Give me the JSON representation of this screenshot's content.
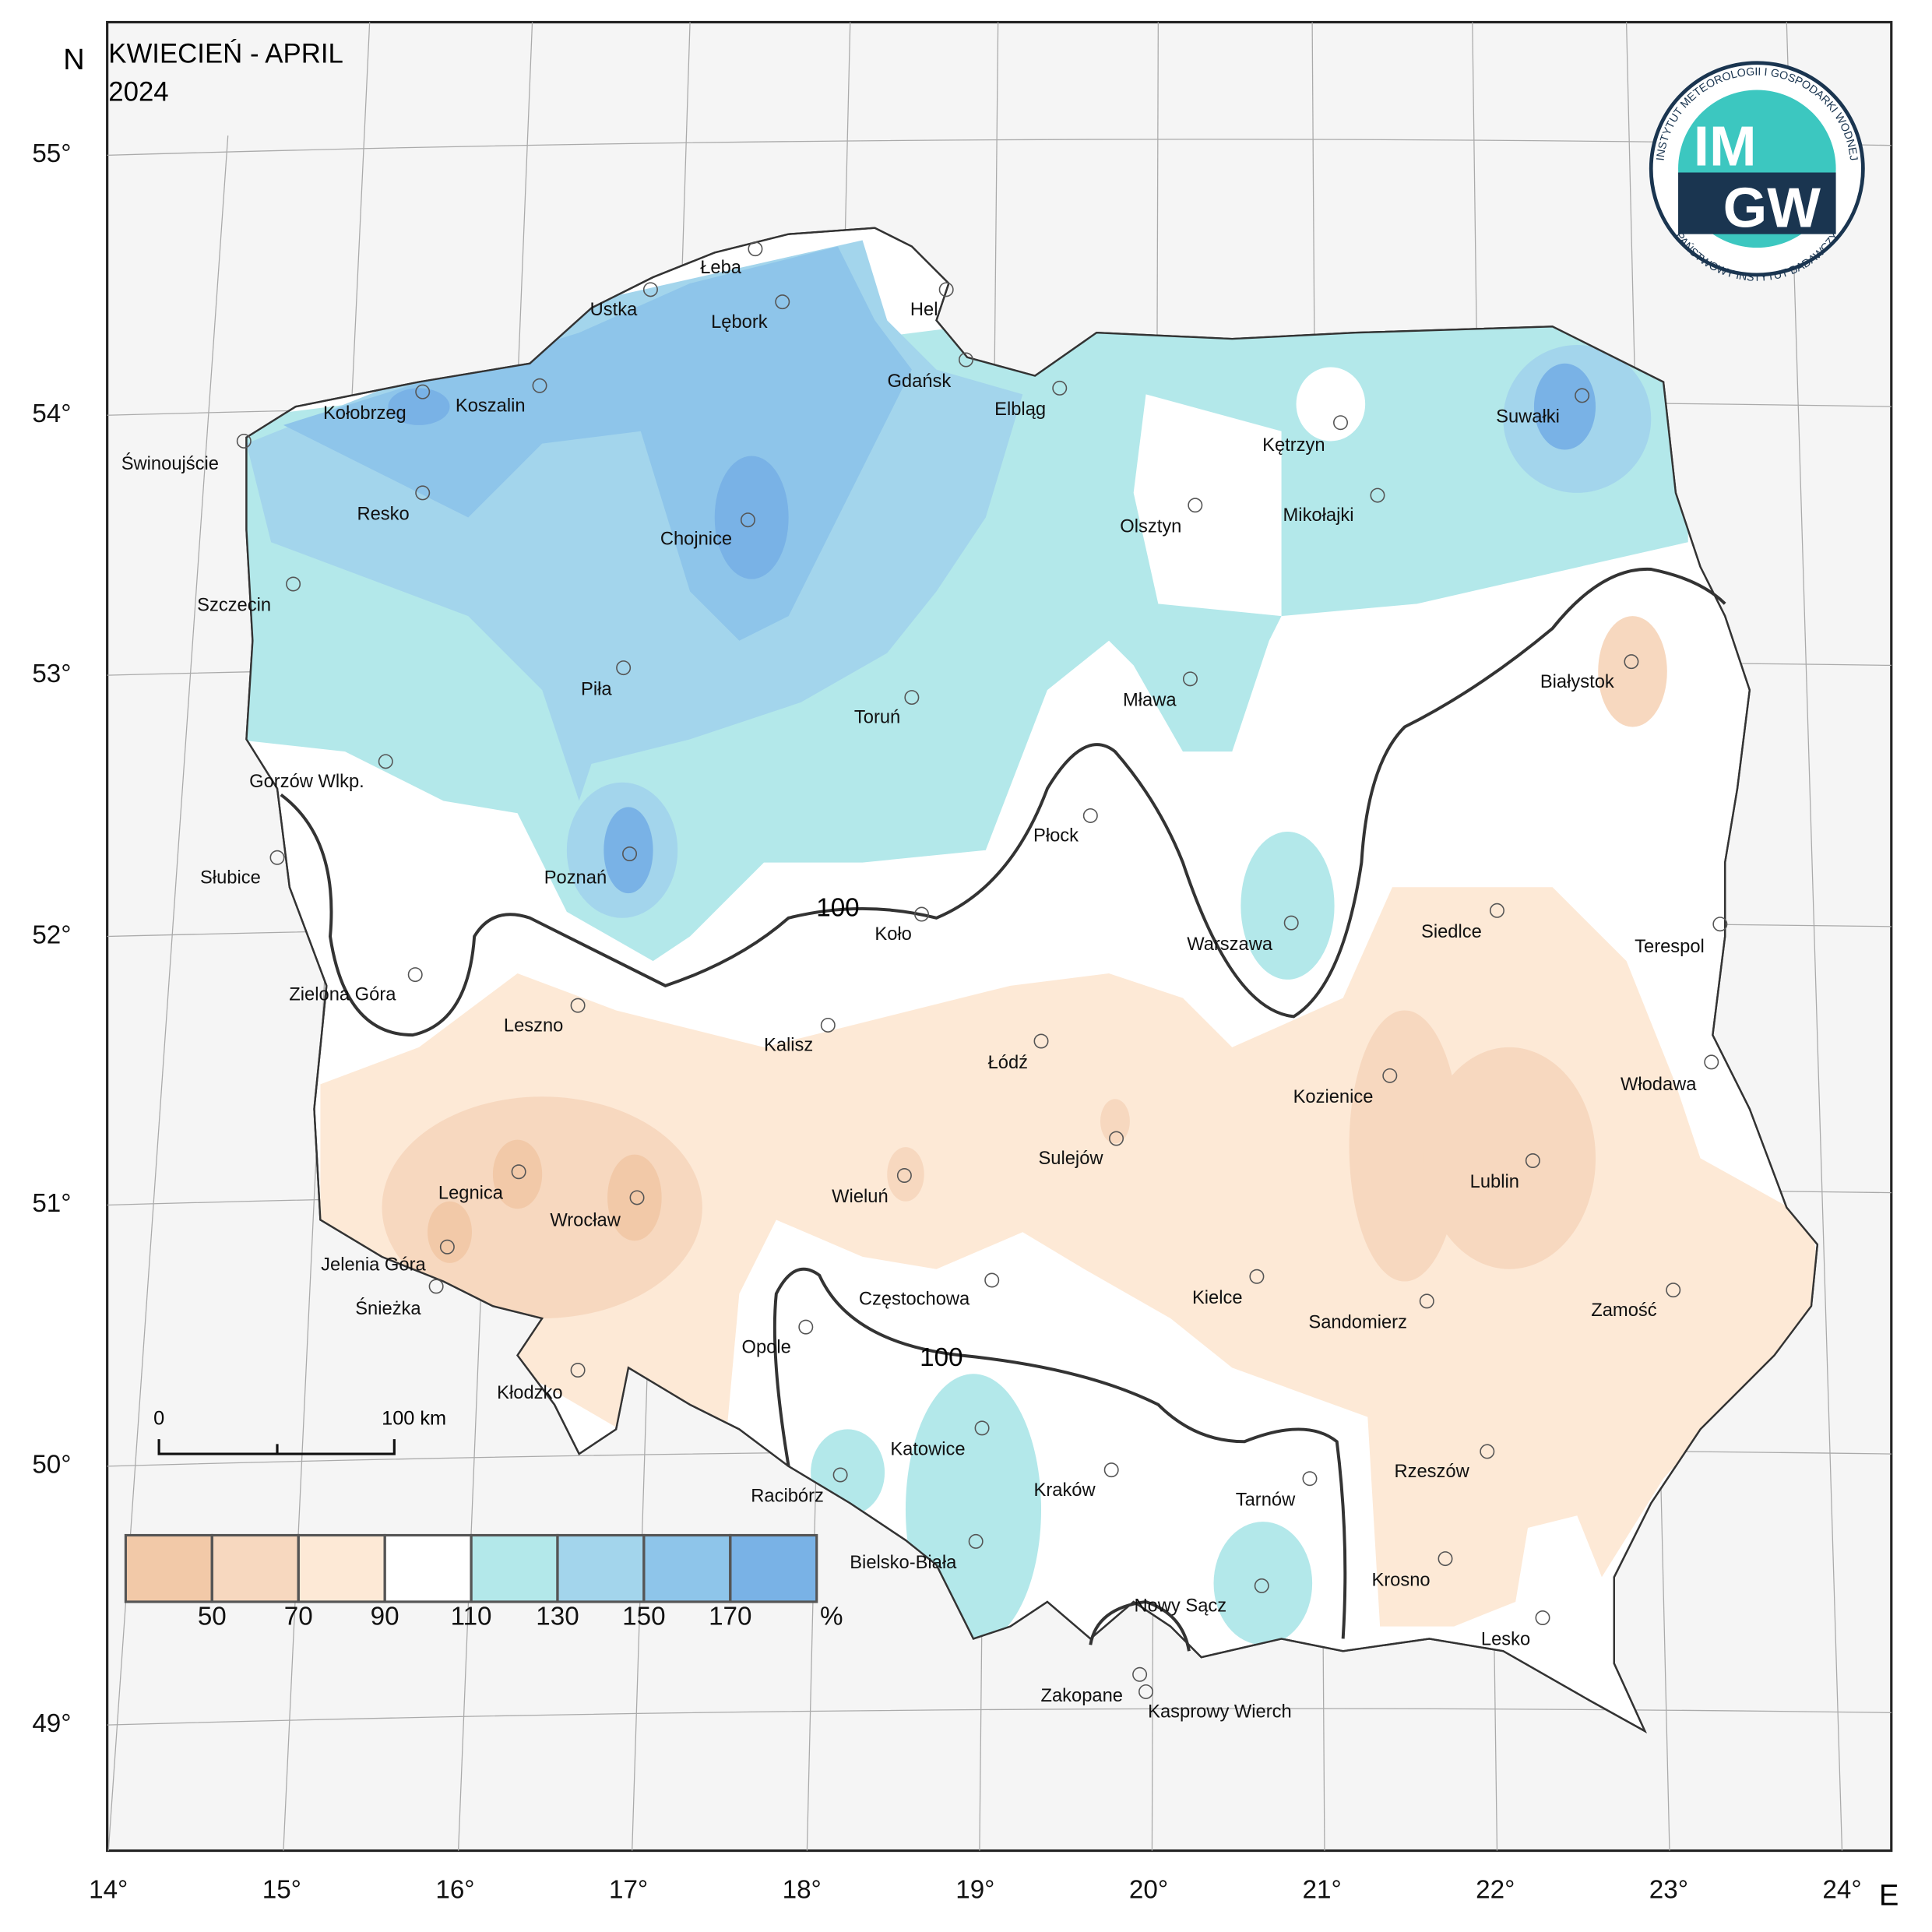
{
  "title": "KWIECIEŃ - APRIL",
  "year": "2024",
  "north": "N",
  "east": "E",
  "latitude_labels": [
    "55°",
    "54°",
    "53°",
    "52°",
    "51°",
    "50°",
    "49°"
  ],
  "longitude_labels": [
    "14°",
    "15°",
    "16°",
    "17°",
    "18°",
    "19°",
    "20°",
    "21°",
    "22°",
    "23°",
    "24°"
  ],
  "cities": [
    "Łeba",
    "Ustka",
    "Lębork",
    "Hel",
    "Gdańsk",
    "Elbląg",
    "Kołobrzeg",
    "Koszalin",
    "Świnoujście",
    "Resko",
    "Chojnice",
    "Olsztyn",
    "Kętrzyn",
    "Mikołajki",
    "Suwałki",
    "Szczecin",
    "Piła",
    "Toruń",
    "Mława",
    "Białystok",
    "Gorzów Wlkp.",
    "Płock",
    "Słubice",
    "Poznań",
    "Koło",
    "Warszawa",
    "Siedlce",
    "Terespol",
    "Zielona Góra",
    "Leszno",
    "Kalisz",
    "Łódź",
    "Kozienice",
    "Włodawa",
    "Sulejów",
    "Legnica",
    "Wrocław",
    "Wieluń",
    "Lublin",
    "Jelenia Góra",
    "Śnieżka",
    "Częstochowa",
    "Kielce",
    "Sandomierz",
    "Zamość",
    "Opole",
    "Kłodzko",
    "Katowice",
    "Rzeszów",
    "Racibórz",
    "Kraków",
    "Tarnów",
    "Bielsko-Biała",
    "Krosno",
    "Nowy Sącz",
    "Lesko",
    "Zakopane",
    "Kasprowy Wierch"
  ],
  "isoline_labels": [
    "100",
    "100"
  ],
  "scale_bar": {
    "start": "0",
    "end": "100 km"
  },
  "legend": {
    "breaks": [
      50,
      70,
      90,
      110,
      130,
      150,
      170
    ],
    "unit": "%",
    "colors": [
      "#f2c9a8",
      "#f7d8bf",
      "#fde9d6",
      "#ffffff",
      "#b3e8ea",
      "#a3d5ec",
      "#8ec5ea",
      "#79b2e6"
    ]
  },
  "logo": {
    "top": "INSTYTUT METEOROLOGII I GOSPODARKI WODNEJ",
    "bottom": "PAŃSTWOWY INSTYTUT BADAWCZY",
    "line1": "IM",
    "line2": "GW"
  }
}
